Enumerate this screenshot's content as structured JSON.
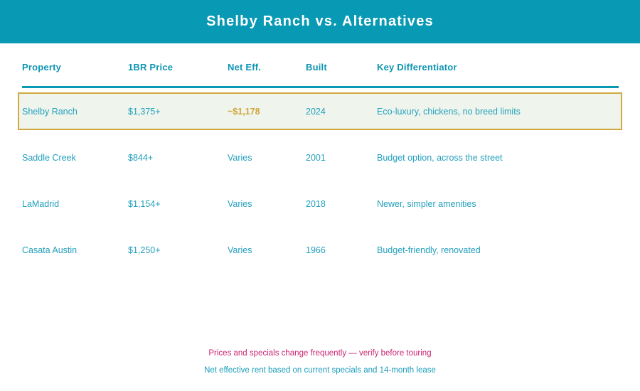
{
  "header": {
    "title": "Shelby Ranch vs. Alternatives"
  },
  "chart_data": {
    "type": "table",
    "title": "Shelby Ranch vs. Alternatives",
    "columns": [
      "Property",
      "1BR Price",
      "Net Eff.",
      "Built",
      "Key Differentiator"
    ],
    "rows": [
      [
        "Shelby Ranch",
        "$1,375+",
        "~$1,178",
        "2024",
        "Eco-luxury, chickens, no breed limits"
      ],
      [
        "Saddle Creek",
        "$844+",
        "Varies",
        "2001",
        "Budget option, across the street"
      ],
      [
        "LaMadrid",
        "$1,154+",
        "Varies",
        "2018",
        "Newer, simpler amenities"
      ],
      [
        "Casata Austin",
        "$1,250+",
        "Varies",
        "1966",
        "Budget-friendly, renovated"
      ]
    ],
    "highlighted_row": "Shelby Ranch",
    "annotations": [
      "Prices and specials change frequently — verify before touring",
      "Net effective rent based on current specials and 14-month lease"
    ],
    "legend_position": "none",
    "grid": false
  },
  "footer": {
    "note_primary": "Prices and specials change frequently — verify before touring",
    "note_secondary": "Net effective rent based on current specials and 14-month lease"
  },
  "colors": {
    "banner_teal": "#0899b4",
    "header_text_teal": "#0d95b2",
    "cell_text_teal": "#24a0bd",
    "highlight_border_gold": "#d1a93f",
    "highlight_value_gold": "#d2a53c",
    "highlight_bg_green": "#eff5ec",
    "note_pink": "#c92572"
  }
}
